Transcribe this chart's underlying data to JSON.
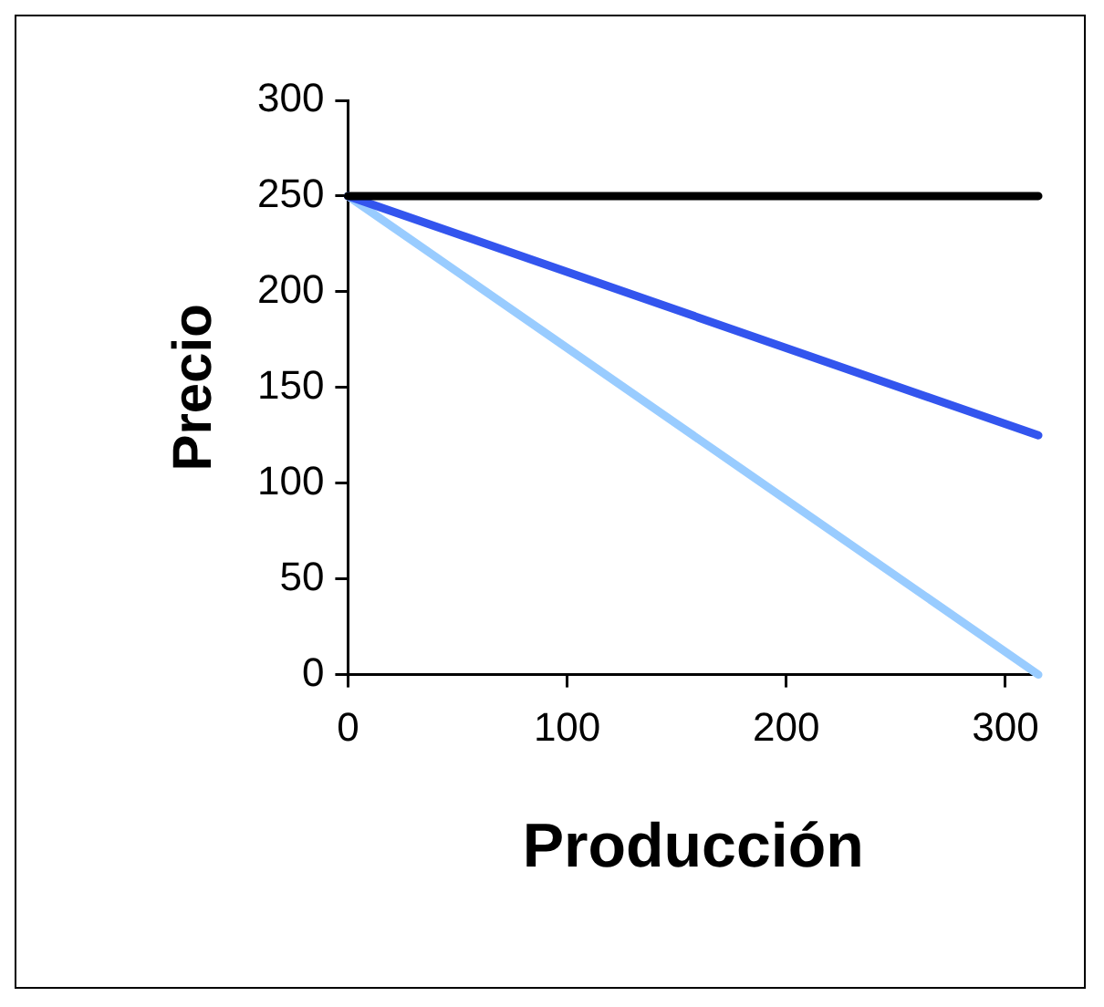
{
  "chart_data": {
    "type": "line",
    "xlabel": "Producción",
    "ylabel": "Precio",
    "x": [
      0,
      315
    ],
    "xlim": [
      0,
      315
    ],
    "xticks": [
      0,
      100,
      200,
      300
    ],
    "ylim": [
      0,
      300
    ],
    "yticks": [
      0,
      50,
      100,
      150,
      200,
      250,
      300
    ],
    "grid": false,
    "legend": false,
    "marker": "none",
    "line_style": "solid",
    "series": [
      {
        "color": "#000000",
        "values": [
          250,
          250
        ]
      },
      {
        "color": "#3355ee",
        "values": [
          250,
          125
        ]
      },
      {
        "color": "#99ccff",
        "values": [
          250,
          0
        ]
      }
    ]
  }
}
